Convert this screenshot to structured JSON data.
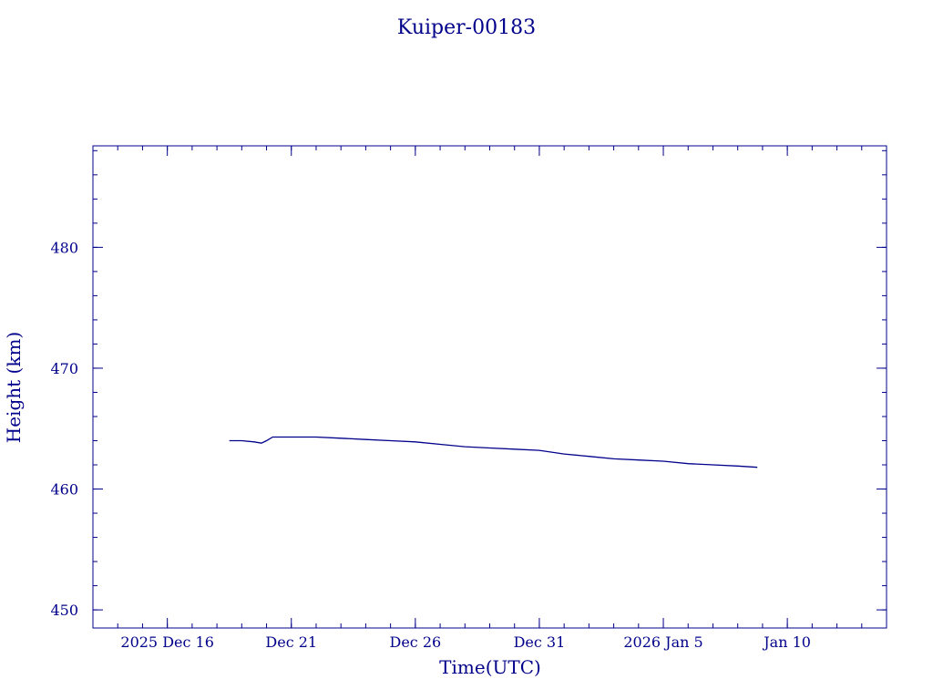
{
  "chart_data": {
    "type": "line",
    "title": "Kuiper-00183",
    "xlabel": "Time(UTC)",
    "ylabel": "Height (km)",
    "x_unit": "date (UTC)",
    "xlim": [
      "2025-12-13",
      "2026-01-14"
    ],
    "ylim": [
      448.5,
      488.4
    ],
    "grid": false,
    "color": "#00008b",
    "x_ticks": [
      {
        "value": "2025-12-16",
        "label": "2025 Dec 16"
      },
      {
        "value": "2025-12-21",
        "label": "Dec 21"
      },
      {
        "value": "2025-12-26",
        "label": "Dec 26"
      },
      {
        "value": "2025-12-31",
        "label": "Dec 31"
      },
      {
        "value": "2026-01-05",
        "label": "2026 Jan  5"
      },
      {
        "value": "2026-01-10",
        "label": "Jan 10"
      }
    ],
    "y_ticks": [
      {
        "value": 450,
        "label": "450"
      },
      {
        "value": 460,
        "label": "460"
      },
      {
        "value": 470,
        "label": "470"
      },
      {
        "value": 480,
        "label": "480"
      }
    ],
    "series": [
      {
        "x": [
          "2025-12-18 12:00",
          "2025-12-19 00:00",
          "2025-12-19 12:00",
          "2025-12-19 19:00",
          "2025-12-20 00:00",
          "2025-12-20 06:00",
          "2025-12-21 00:00",
          "2025-12-22 00:00",
          "2025-12-23 00:00",
          "2025-12-24 00:00",
          "2025-12-25 00:00",
          "2025-12-26 00:00",
          "2025-12-27 00:00",
          "2025-12-28 00:00",
          "2025-12-29 00:00",
          "2025-12-30 00:00",
          "2025-12-31 00:00",
          "2026-01-01 00:00",
          "2026-01-02 00:00",
          "2026-01-03 00:00",
          "2026-01-04 00:00",
          "2026-01-05 00:00",
          "2026-01-06 00:00",
          "2026-01-07 00:00",
          "2026-01-08 00:00",
          "2026-01-08 19:00"
        ],
        "y": [
          464.0,
          464.0,
          463.9,
          463.8,
          464.0,
          464.3,
          464.3,
          464.3,
          464.2,
          464.1,
          464.0,
          463.9,
          463.7,
          463.5,
          463.4,
          463.3,
          463.2,
          462.9,
          462.7,
          462.5,
          462.4,
          462.3,
          462.1,
          462.0,
          461.9,
          461.8
        ]
      }
    ]
  }
}
